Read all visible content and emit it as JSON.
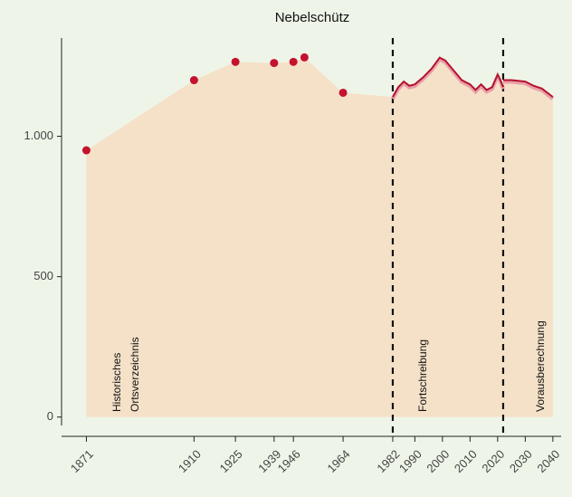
{
  "chart_data": {
    "type": "area-line",
    "title": "Nebelschütz",
    "series": [
      {
        "name": "Historisches Ortsverzeichnis",
        "color": "#c4122f",
        "x": [
          1871,
          1910,
          1925,
          1939,
          1946,
          1950,
          1964
        ],
        "values": [
          950,
          1200,
          1265,
          1261,
          1265,
          1281,
          1155
        ]
      },
      {
        "name": "Fortschreibung",
        "color": "#b5122e",
        "x": [
          1982,
          1984,
          1986,
          1988,
          1990,
          1993,
          1996,
          1999,
          2001,
          2004,
          2007,
          2010,
          2012,
          2014,
          2016,
          2018,
          2020,
          2021,
          2022
        ],
        "values": [
          1140,
          1175,
          1195,
          1180,
          1185,
          1210,
          1240,
          1280,
          1270,
          1235,
          1200,
          1185,
          1165,
          1185,
          1165,
          1175,
          1220,
          1200,
          1175
        ]
      },
      {
        "name": "Vorausberechnung",
        "color": "#b5122e",
        "x": [
          2022,
          2025,
          2030,
          2033,
          2036,
          2040
        ],
        "values": [
          1200,
          1200,
          1195,
          1180,
          1170,
          1140
        ]
      }
    ],
    "annotations": [
      "Historisches",
      "Ortsverzeichnis",
      "Fortschreibung",
      "Vorausberechnung"
    ],
    "vlines": [
      1982,
      2022
    ],
    "area_color": "#f5e1c8",
    "xlim": [
      1862,
      2043
    ],
    "xticks": [
      1871,
      1910,
      1925,
      1939,
      1946,
      1964,
      1982,
      1990,
      2000,
      2010,
      2020,
      2030,
      2040
    ],
    "ylim": [
      -30,
      1350
    ],
    "yticks": [
      0,
      500,
      {
        "value": 1000,
        "label": "1.000"
      }
    ]
  }
}
